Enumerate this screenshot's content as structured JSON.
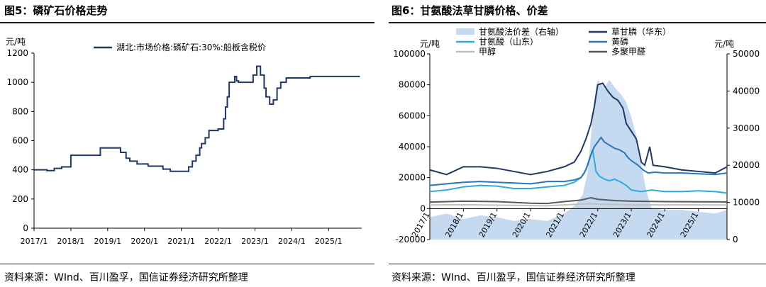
{
  "figures": [
    {
      "title": "图5：磷矿石价格走势",
      "source": "资料来源：WInd、百川盈孚，国信证券经济研究所整理"
    },
    {
      "title": "图6：甘氨酸法草甘膦价格、价差",
      "source": "资料来源：WInd、百川盈孚，国信证券经济研究所整理"
    }
  ],
  "chart_data": [
    {
      "type": "line",
      "title": "",
      "ylabel": "元/吨",
      "ylim": [
        0,
        1200
      ],
      "yticks": [
        0,
        200,
        400,
        600,
        800,
        1000,
        1200
      ],
      "xlim": [
        2017.0,
        2025.9
      ],
      "xtick_labels": [
        "2017/1",
        "2018/1",
        "2019/1",
        "2020/1",
        "2021/1",
        "2022/1",
        "2023/1",
        "2024/1",
        "2025/1"
      ],
      "legend": "top",
      "grid": false,
      "series": [
        {
          "name": "湖北:市场价格:磷矿石:30%:船板含税价",
          "color": "#1f3864",
          "step": true,
          "x": [
            2017.0,
            2017.35,
            2017.55,
            2017.75,
            2018.0,
            2018.8,
            2019.35,
            2019.5,
            2019.6,
            2019.8,
            2020.1,
            2020.5,
            2020.7,
            2021.0,
            2021.2,
            2021.3,
            2021.4,
            2021.5,
            2021.55,
            2021.65,
            2021.75,
            2022.0,
            2022.15,
            2022.2,
            2022.25,
            2022.3,
            2022.45,
            2022.5,
            2022.55,
            2022.9,
            2022.95,
            2023.05,
            2023.15,
            2023.25,
            2023.3,
            2023.4,
            2023.5,
            2023.6,
            2023.7,
            2023.85,
            2024.0,
            2024.3,
            2024.5,
            2025.0,
            2025.85
          ],
          "values": [
            400,
            395,
            410,
            420,
            500,
            550,
            520,
            480,
            460,
            440,
            425,
            405,
            390,
            390,
            420,
            460,
            500,
            550,
            580,
            620,
            670,
            680,
            750,
            830,
            900,
            1000,
            1040,
            1010,
            1000,
            1000,
            1050,
            1110,
            1050,
            960,
            900,
            850,
            880,
            960,
            1000,
            1030,
            1030,
            1030,
            1040,
            1040,
            1040
          ]
        }
      ]
    },
    {
      "type": "line",
      "title": "",
      "ylabel": "元/吨",
      "y2label": "元/吨",
      "ylim": [
        -20000,
        100000
      ],
      "yticks": [
        -20000,
        0,
        20000,
        40000,
        60000,
        80000,
        100000
      ],
      "y2lim": [
        0,
        50000
      ],
      "y2ticks": [
        0,
        10000,
        20000,
        30000,
        40000,
        50000
      ],
      "xlim": [
        2017.0,
        2025.85
      ],
      "xtick_labels": [
        "2017/1",
        "2018/1",
        "2019/1",
        "2020/1",
        "2021/1",
        "2022/1",
        "2023/1",
        "2024/1",
        "2025/1"
      ],
      "legend": "top",
      "grid": false,
      "series": [
        {
          "name": "甘氨酸法价差（右轴）",
          "type": "area",
          "axis": "right",
          "color": "#c5d9f1",
          "x": [
            2017.0,
            2017.5,
            2018.0,
            2018.5,
            2019.0,
            2019.5,
            2020.0,
            2020.5,
            2021.0,
            2021.3,
            2021.55,
            2021.7,
            2021.8,
            2021.9,
            2022.0,
            2022.1,
            2022.2,
            2022.35,
            2022.5,
            2022.7,
            2022.85,
            2023.0,
            2023.15,
            2023.3,
            2023.45,
            2023.6,
            2024.0,
            2024.5,
            2025.0,
            2025.5,
            2025.85
          ],
          "values": [
            6000,
            7000,
            5500,
            6500,
            6000,
            5000,
            5500,
            5000,
            7000,
            9000,
            12000,
            18000,
            28000,
            38000,
            43000,
            42000,
            41000,
            43000,
            41000,
            39000,
            37000,
            33000,
            28000,
            20000,
            13000,
            8500,
            8000,
            8000,
            7500,
            7000,
            8000
          ]
        },
        {
          "name": "草甘膦（华东）",
          "axis": "left",
          "color": "#1f3864",
          "x": [
            2017.0,
            2017.5,
            2018.0,
            2018.5,
            2019.0,
            2019.5,
            2020.0,
            2020.5,
            2021.0,
            2021.3,
            2021.5,
            2021.65,
            2021.8,
            2021.9,
            2022.0,
            2022.15,
            2022.3,
            2022.45,
            2022.6,
            2022.75,
            2022.85,
            2023.0,
            2023.15,
            2023.3,
            2023.4,
            2023.55,
            2023.65,
            2024.0,
            2024.5,
            2025.0,
            2025.5,
            2025.85
          ],
          "values": [
            25000,
            22000,
            27000,
            27000,
            26000,
            24000,
            22000,
            24000,
            27000,
            30000,
            37000,
            45000,
            55000,
            66000,
            80000,
            81000,
            76000,
            72000,
            70000,
            65000,
            55000,
            50000,
            45000,
            30000,
            28000,
            40000,
            28000,
            27000,
            25000,
            24000,
            23000,
            27000
          ]
        },
        {
          "name": "甘氨酸（山东）",
          "axis": "left",
          "color": "#2eaadc",
          "x": [
            2017.0,
            2017.5,
            2018.0,
            2018.5,
            2019.0,
            2019.5,
            2020.0,
            2020.5,
            2021.0,
            2021.3,
            2021.5,
            2021.65,
            2021.75,
            2021.85,
            2021.95,
            2022.05,
            2022.2,
            2022.35,
            2022.5,
            2022.7,
            2022.85,
            2023.0,
            2023.3,
            2023.6,
            2024.0,
            2024.5,
            2025.0,
            2025.5,
            2025.85
          ],
          "values": [
            11000,
            12000,
            14000,
            15000,
            14500,
            13000,
            13000,
            14000,
            15000,
            17000,
            20000,
            25000,
            32000,
            38000,
            24000,
            21000,
            19000,
            18000,
            19000,
            17000,
            15000,
            12000,
            11000,
            12000,
            11000,
            11000,
            11500,
            11000,
            10000
          ]
        },
        {
          "name": "黄磷",
          "axis": "left",
          "color": "#2e75b6",
          "x": [
            2017.0,
            2017.5,
            2018.0,
            2018.5,
            2019.0,
            2019.5,
            2020.0,
            2020.5,
            2021.0,
            2021.3,
            2021.5,
            2021.6,
            2021.7,
            2021.8,
            2021.9,
            2022.0,
            2022.1,
            2022.2,
            2022.35,
            2022.5,
            2022.65,
            2022.8,
            2022.9,
            2023.0,
            2023.2,
            2023.35,
            2023.5,
            2023.7,
            2024.0,
            2024.5,
            2025.0,
            2025.5,
            2025.85
          ],
          "values": [
            15000,
            16000,
            17000,
            17500,
            17000,
            16500,
            16000,
            17500,
            17500,
            18500,
            20000,
            23000,
            28000,
            35000,
            40000,
            43000,
            46000,
            43000,
            41000,
            39000,
            38000,
            36000,
            33000,
            31000,
            28000,
            25000,
            23000,
            23500,
            23000,
            23000,
            22500,
            22000,
            23000
          ]
        },
        {
          "name": "甲醇",
          "axis": "left",
          "color": "#bfbfbf",
          "x": [
            2017.0,
            2018.0,
            2019.0,
            2020.0,
            2020.5,
            2021.0,
            2021.8,
            2022.0,
            2022.5,
            2023.0,
            2024.0,
            2025.0,
            2025.85
          ],
          "values": [
            2300,
            2500,
            2200,
            1900,
            1800,
            2400,
            3200,
            2900,
            2700,
            2400,
            2400,
            2400,
            2300
          ]
        },
        {
          "name": "多聚甲醛",
          "axis": "left",
          "color": "#595959",
          "x": [
            2017.0,
            2018.0,
            2019.0,
            2020.0,
            2020.5,
            2021.0,
            2021.5,
            2021.8,
            2022.0,
            2022.5,
            2023.0,
            2024.0,
            2025.0,
            2025.85
          ],
          "values": [
            4200,
            4800,
            4500,
            3500,
            3300,
            4500,
            5500,
            7000,
            6000,
            5200,
            4800,
            4500,
            4400,
            4300
          ]
        }
      ]
    }
  ]
}
